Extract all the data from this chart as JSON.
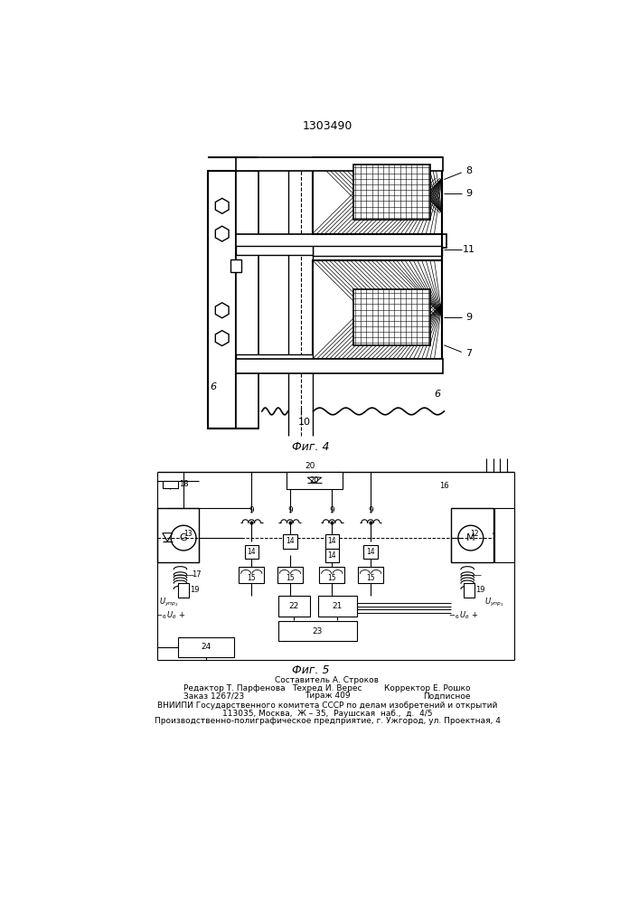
{
  "patent_number": "1303490",
  "fig4_label": "Фиг. 4",
  "fig5_label": "Фиг. 5",
  "footer_line1_center": "Составитель А. Строков",
  "footer_line2_left": "Редактор Т. Парфенова",
  "footer_line2_center": "Техред И. Верес",
  "footer_line2_right": "Корректор Е. Рошко",
  "footer_line3_left": "Заказ 1267/23",
  "footer_line3_center": "Тираж 409",
  "footer_line3_right": "Подписное",
  "footer_line4": "ВНИИПИ Государственного комитета СССР по делам изобретений и открытий",
  "footer_line5": "113035, Москва,  Ж – 35,  Раушская  наб.,  д.  4/5",
  "footer_line6": "Производственно-полиграфическое предприятие, г. Ужгород, ул. Проектная, 4",
  "bg_color": "#ffffff",
  "line_color": "#000000"
}
